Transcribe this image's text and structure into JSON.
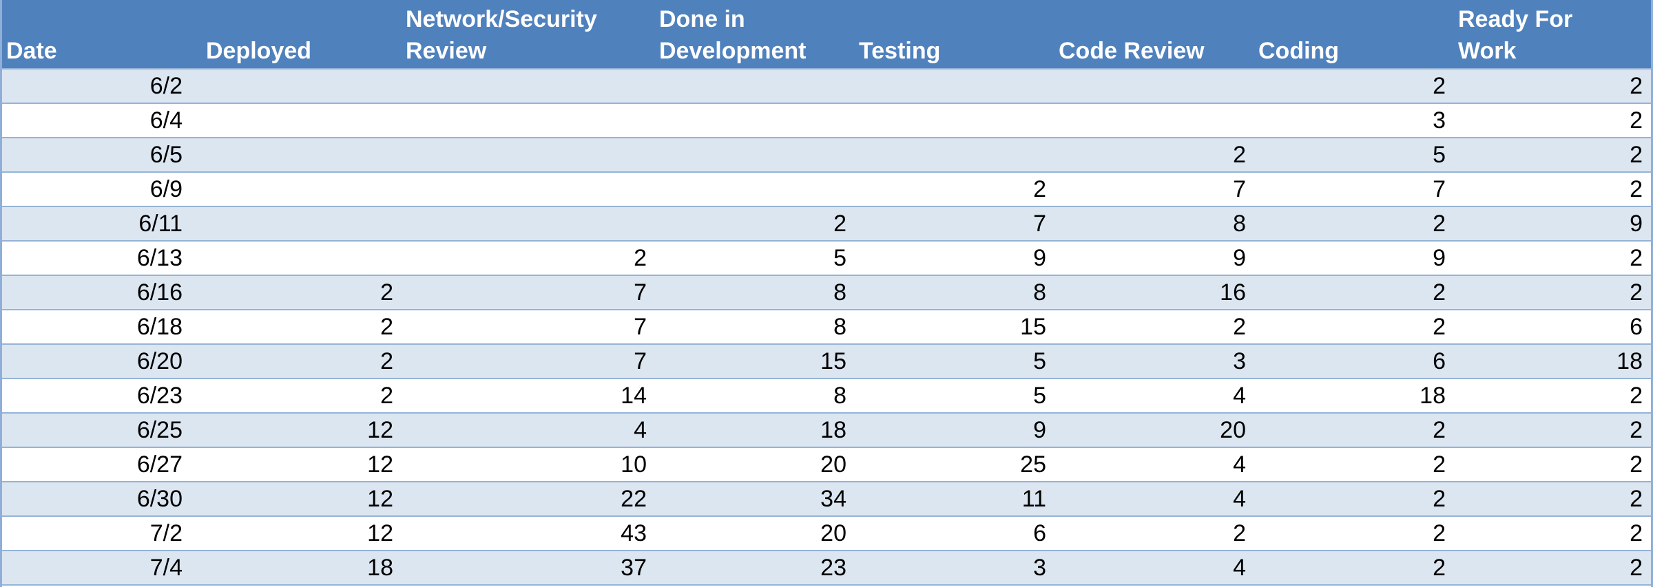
{
  "colors": {
    "header_bg": "#4F81BD",
    "header_text": "#FFFFFF",
    "band_row": "#DCE6F1",
    "plain_row": "#FFFFFF",
    "grid_line": "#95B3D7"
  },
  "table": {
    "headers": [
      "Date",
      "Deployed",
      "Network/Security\nReview",
      "Done in\nDevelopment",
      "Testing",
      "Code Review",
      "Coding",
      "Ready For\nWork"
    ],
    "rows": [
      [
        "6/2",
        "",
        "",
        "",
        "",
        "",
        "2",
        "2"
      ],
      [
        "6/4",
        "",
        "",
        "",
        "",
        "",
        "3",
        "2"
      ],
      [
        "6/5",
        "",
        "",
        "",
        "",
        "2",
        "5",
        "2"
      ],
      [
        "6/9",
        "",
        "",
        "",
        "2",
        "7",
        "7",
        "2"
      ],
      [
        "6/11",
        "",
        "",
        "2",
        "7",
        "8",
        "2",
        "9"
      ],
      [
        "6/13",
        "",
        "2",
        "5",
        "9",
        "9",
        "9",
        "2"
      ],
      [
        "6/16",
        "2",
        "7",
        "8",
        "8",
        "16",
        "2",
        "2"
      ],
      [
        "6/18",
        "2",
        "7",
        "8",
        "15",
        "2",
        "2",
        "6"
      ],
      [
        "6/20",
        "2",
        "7",
        "15",
        "5",
        "3",
        "6",
        "18"
      ],
      [
        "6/23",
        "2",
        "14",
        "8",
        "5",
        "4",
        "18",
        "2"
      ],
      [
        "6/25",
        "12",
        "4",
        "18",
        "9",
        "20",
        "2",
        "2"
      ],
      [
        "6/27",
        "12",
        "10",
        "20",
        "25",
        "4",
        "2",
        "2"
      ],
      [
        "6/30",
        "12",
        "22",
        "34",
        "11",
        "4",
        "2",
        "2"
      ],
      [
        "7/2",
        "12",
        "43",
        "20",
        "6",
        "2",
        "2",
        "2"
      ],
      [
        "7/4",
        "18",
        "37",
        "23",
        "3",
        "4",
        "2",
        "2"
      ]
    ]
  }
}
